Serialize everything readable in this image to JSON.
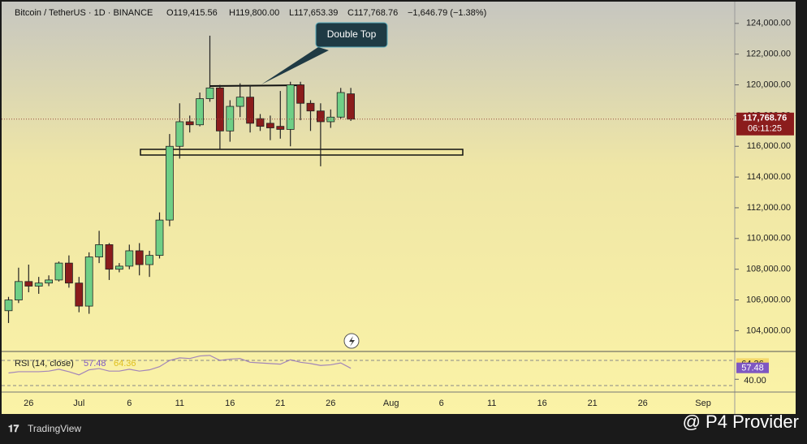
{
  "chart_data": {
    "type": "candlestick",
    "header": {
      "symbol": "Bitcoin / TetherUS · 1D · BINANCE",
      "open": "O119,415.56",
      "high": "H119,800.00",
      "low": "L117,653.39",
      "close": "C117,768.76",
      "change": "−1,646.79 (−1.38%)"
    },
    "annotation": "Double Top",
    "last_price_label": "117,768.76",
    "countdown": "06:11:25",
    "categories": [
      null,
      null,
      "26",
      null,
      null,
      null,
      null,
      "Jul",
      null,
      null,
      null,
      null,
      "6",
      null,
      null,
      null,
      null,
      "11",
      null,
      null,
      null,
      null,
      "16",
      null,
      null,
      null,
      null,
      "21",
      null,
      null,
      null,
      null,
      "26",
      null,
      null,
      null,
      null,
      null,
      "Aug",
      null,
      null,
      null,
      null,
      "6",
      null,
      null,
      null,
      null,
      "11",
      null,
      null,
      null,
      null,
      "16",
      null,
      null,
      null,
      null,
      "21",
      null,
      null,
      null,
      null,
      "26",
      null,
      null,
      null,
      null,
      null,
      "Sep"
    ],
    "open": [
      105300,
      106000,
      107200,
      106900,
      107100,
      107300,
      108400,
      107100,
      105600,
      108800,
      109600,
      108000,
      108200,
      109200,
      108300,
      108900,
      111200,
      116000,
      117600,
      117400,
      119100,
      119800,
      117000,
      118600,
      119200,
      117800,
      117500,
      117300,
      117100,
      120000,
      118800,
      118300,
      117600,
      117900,
      119415.56,
      null,
      null,
      null,
      null,
      null,
      null,
      null,
      null,
      null,
      null,
      null,
      null,
      null,
      null,
      null,
      null,
      null,
      null,
      null,
      null,
      null,
      null,
      null,
      null,
      null,
      null,
      null,
      null,
      null,
      null,
      null,
      null,
      null,
      null,
      null
    ],
    "high": [
      106200,
      108100,
      108300,
      107500,
      107600,
      108500,
      108900,
      107500,
      109100,
      110500,
      109700,
      108400,
      109600,
      109700,
      109200,
      111700,
      116800,
      118800,
      118000,
      119500,
      123200,
      120000,
      119000,
      120100,
      120000,
      118100,
      118000,
      119600,
      120200,
      120200,
      119000,
      118800,
      118400,
      119800,
      119800,
      null,
      null,
      null,
      null,
      null,
      null,
      null,
      null,
      null,
      null,
      null,
      null,
      null,
      null,
      null,
      null,
      null,
      null,
      null,
      null,
      null,
      null,
      null,
      null,
      null,
      null,
      null,
      null,
      null,
      null,
      null,
      null,
      null,
      null,
      null
    ],
    "low": [
      104500,
      105800,
      106500,
      106400,
      106900,
      107200,
      106800,
      105200,
      105100,
      108400,
      107300,
      107800,
      108000,
      107600,
      107500,
      108700,
      110800,
      115200,
      116900,
      117300,
      118900,
      115800,
      116300,
      117900,
      116900,
      117000,
      116400,
      116500,
      116000,
      117700,
      117000,
      114700,
      117200,
      117800,
      117653.39,
      null,
      null,
      null,
      null,
      null,
      null,
      null,
      null,
      null,
      null,
      null,
      null,
      null,
      null,
      null,
      null,
      null,
      null,
      null,
      null,
      null,
      null,
      null,
      null,
      null,
      null,
      null,
      null,
      null,
      null,
      null,
      null,
      null,
      null,
      null
    ],
    "close": [
      106000,
      107200,
      106900,
      107100,
      107300,
      108400,
      107100,
      105600,
      108800,
      109600,
      108000,
      108200,
      109200,
      108300,
      108900,
      111200,
      116000,
      117600,
      117400,
      119100,
      119800,
      117000,
      118600,
      119200,
      117500,
      117300,
      117200,
      117100,
      120000,
      118800,
      118300,
      117600,
      117900,
      119500,
      117768.76,
      null,
      null,
      null,
      null,
      null,
      null,
      null,
      null,
      null,
      null,
      null,
      null,
      null,
      null,
      null,
      null,
      null,
      null,
      null,
      null,
      null,
      null,
      null,
      null,
      null,
      null,
      null,
      null,
      null,
      null,
      null,
      null,
      null,
      null,
      null
    ],
    "up_color": "#6fcf86",
    "down_color": "#8b1c1c",
    "ylim": [
      102700,
      125100
    ],
    "yticks": [
      {
        "value": 104000,
        "label": "104,000.00"
      },
      {
        "value": 106000,
        "label": "106,000.00"
      },
      {
        "value": 108000,
        "label": "108,000.00"
      },
      {
        "value": 110000,
        "label": "110,000.00"
      },
      {
        "value": 112000,
        "label": "112,000.00"
      },
      {
        "value": 114000,
        "label": "114,000.00"
      },
      {
        "value": 116000,
        "label": "116,000.00"
      },
      {
        "value": 118000,
        "label": "118,000.00"
      },
      {
        "value": 120000,
        "label": "120,000.00"
      },
      {
        "value": 122000,
        "label": "122,000.00"
      },
      {
        "value": 124000,
        "label": "124,000.00"
      }
    ],
    "rsi": {
      "label": "RSI (14, close)",
      "value": 57.48,
      "ma_value": 64.36,
      "color": "#7e57c2",
      "ma_color": "#e0c020",
      "ylim": [
        19.7,
        84.2
      ],
      "yticks": [
        {
          "value": 40,
          "label": "40.00"
        }
      ],
      "values": [
        50,
        52,
        52,
        52,
        53,
        56,
        52,
        47,
        55,
        57,
        53,
        53,
        56,
        53,
        55,
        60,
        70,
        74,
        73,
        77,
        78,
        70,
        72,
        73,
        67,
        66,
        65,
        64,
        71,
        67,
        65,
        62,
        63,
        66,
        57.48,
        null,
        null,
        null,
        null,
        null,
        null,
        null,
        null,
        null,
        null,
        null,
        null,
        null,
        null,
        null,
        null,
        null,
        null,
        null,
        null,
        null,
        null,
        null,
        null,
        null,
        null,
        null,
        null,
        null,
        null,
        null,
        null,
        null,
        null,
        null
      ]
    },
    "branding": "TradingView",
    "watermark": "@ P4 Provider"
  }
}
